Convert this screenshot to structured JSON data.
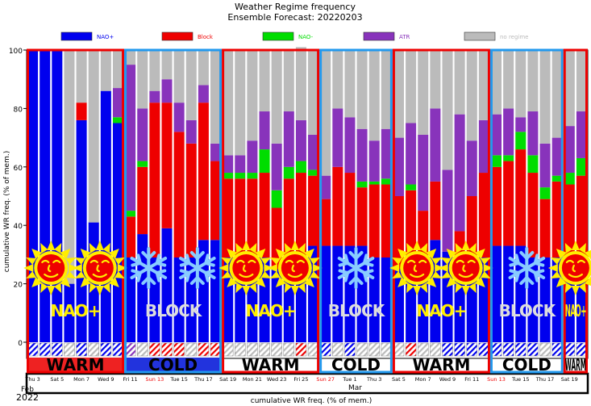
{
  "chart_data": {
    "type": "bar",
    "stacked": true,
    "title": "Weather Regime frequency",
    "subtitle": "Ensemble Forecast: 20220203",
    "xlabel": "cumulative WR freq. (% of mem.)",
    "ylabel": "cumulative WR freq. (% of mem.)",
    "ylim": [
      0,
      100
    ],
    "yticks": [
      "0",
      "20",
      "40",
      "60",
      "80",
      "100"
    ],
    "legend_position": "top",
    "series": [
      {
        "name": "NAO+",
        "color": "#0000ee",
        "values": [
          100,
          100,
          100,
          20,
          76,
          41,
          86,
          75,
          29,
          37,
          29,
          39,
          29,
          29,
          35,
          35,
          29,
          29,
          29,
          29,
          25,
          25,
          25,
          33,
          33,
          33,
          33,
          33,
          29,
          29,
          25,
          25,
          25,
          35,
          31,
          25,
          29,
          29,
          33,
          33,
          33,
          29,
          29,
          29,
          29,
          26
        ]
      },
      {
        "name": "Block",
        "color": "#ee0000",
        "values": [
          0,
          0,
          0,
          0,
          6,
          0,
          0,
          0,
          14,
          23,
          53,
          43,
          43,
          39,
          47,
          27,
          27,
          27,
          27,
          29,
          21,
          31,
          33,
          24,
          16,
          27,
          25,
          20,
          25,
          25,
          25,
          27,
          20,
          20,
          0,
          13,
          21,
          29,
          27,
          29,
          33,
          29,
          20,
          26,
          25,
          31
        ]
      },
      {
        "name": "NAO-",
        "color": "#00dd00",
        "values": [
          0,
          0,
          0,
          0,
          0,
          0,
          0,
          2,
          2,
          2,
          0,
          0,
          0,
          0,
          0,
          0,
          2,
          2,
          2,
          8,
          6,
          4,
          4,
          2,
          0,
          0,
          0,
          2,
          1,
          2,
          0,
          2,
          0,
          0,
          0,
          0,
          0,
          0,
          4,
          2,
          6,
          6,
          4,
          2,
          4,
          6
        ]
      },
      {
        "name": "ATR",
        "color": "#8833bb",
        "values": [
          0,
          0,
          0,
          0,
          0,
          0,
          0,
          10,
          50,
          18,
          4,
          8,
          10,
          8,
          6,
          6,
          6,
          6,
          11,
          13,
          16,
          19,
          14,
          12,
          8,
          20,
          19,
          18,
          14,
          17,
          20,
          21,
          26,
          25,
          28,
          40,
          19,
          18,
          14,
          16,
          5,
          15,
          15,
          13,
          16,
          16
        ]
      },
      {
        "name": "no regime",
        "color": "#bbbbbb",
        "values": [
          0,
          0,
          0,
          80,
          18,
          59,
          14,
          13,
          5,
          20,
          14,
          10,
          18,
          24,
          12,
          32,
          36,
          36,
          31,
          21,
          32,
          21,
          25,
          29,
          43,
          20,
          23,
          27,
          31,
          27,
          30,
          25,
          29,
          20,
          41,
          22,
          31,
          24,
          22,
          20,
          23,
          21,
          32,
          30,
          26,
          21
        ]
      }
    ],
    "date_ticks": [
      {
        "label": "Thu 3",
        "color": "#000000"
      },
      {
        "label": "Sat 5",
        "color": "#000000"
      },
      {
        "label": "Mon 7",
        "color": "#000000"
      },
      {
        "label": "Wed 9",
        "color": "#000000"
      },
      {
        "label": "Fri 11",
        "color": "#000000"
      },
      {
        "label": "Sun 13",
        "color": "#ee0000"
      },
      {
        "label": "Tue 15",
        "color": "#000000"
      },
      {
        "label": "Thu 17",
        "color": "#000000"
      },
      {
        "label": "Sat 19",
        "color": "#000000"
      },
      {
        "label": "Mon 21",
        "color": "#000000"
      },
      {
        "label": "Wed 23",
        "color": "#000000"
      },
      {
        "label": "Fri 25",
        "color": "#000000"
      },
      {
        "label": "Sun 27",
        "color": "#ee0000"
      },
      {
        "label": "Tue 1",
        "color": "#000000"
      },
      {
        "label": "Thu 3",
        "color": "#000000"
      },
      {
        "label": "Sat 5",
        "color": "#000000"
      },
      {
        "label": "Mon 7",
        "color": "#000000"
      },
      {
        "label": "Wed 9",
        "color": "#000000"
      },
      {
        "label": "Fri 11",
        "color": "#000000"
      },
      {
        "label": "Sun 13",
        "color": "#ee0000"
      },
      {
        "label": "Tue 15",
        "color": "#000000"
      },
      {
        "label": "Thu 17",
        "color": "#000000"
      },
      {
        "label": "Sat 19",
        "color": "#000000"
      }
    ],
    "month_labels": [
      "Feb",
      "Mar"
    ],
    "year_label": "2022",
    "dominant_regime_row": [
      "NAO+",
      "NAO+",
      "NAO+",
      "no regime",
      "NAO+",
      "no regime",
      "NAO+",
      "NAO+",
      "ATR",
      "no regime",
      "Block",
      "Block",
      "Block",
      "no regime",
      "Block",
      "Block",
      "no regime",
      "no regime",
      "no regime",
      "no regime",
      "no regime",
      "no regime",
      "Block",
      "no regime",
      "NAO+",
      "no regime",
      "NAO+",
      "no regime",
      "no regime",
      "no regime",
      "no regime",
      "Block",
      "no regime",
      "no regime",
      "NAO+",
      "NAO+",
      "NAO+",
      "NAO+",
      "NAO+",
      "NAO+",
      "NAO+",
      "NAO+",
      "no regime",
      "NAO+",
      "NAO+",
      "NAO+"
    ],
    "periods": [
      {
        "type": "WARM",
        "regime": "NAO+",
        "icon": "sun",
        "start": 0,
        "end": 8,
        "color": "#ee0000",
        "label_color": "#ffee00",
        "bottom_fill": "#ee2222"
      },
      {
        "type": "COLD",
        "regime": "BLOCK",
        "icon": "snowflake",
        "start": 8,
        "end": 16,
        "color": "#2299ee",
        "label_color": "#dddddd",
        "bottom_fill": "#2233dd"
      },
      {
        "type": "WARM",
        "regime": "NAO+",
        "icon": "sun",
        "start": 16,
        "end": 24,
        "color": "#ee0000",
        "label_color": "#ffee00",
        "bottom_fill": "#ffffff"
      },
      {
        "type": "COLD",
        "regime": "BLOCK",
        "icon": "snowflake",
        "start": 24,
        "end": 30,
        "color": "#2299ee",
        "label_color": "#dddddd",
        "bottom_fill": "#ffffff"
      },
      {
        "type": "WARM",
        "regime": "NAO+",
        "icon": "sun",
        "start": 30,
        "end": 38,
        "color": "#ee0000",
        "label_color": "#ffee00",
        "bottom_fill": "#ffffff"
      },
      {
        "type": "COLD",
        "regime": "BLOCK",
        "icon": "snowflake",
        "start": 38,
        "end": 44,
        "color": "#2299ee",
        "label_color": "#dddddd",
        "bottom_fill": "#ffffff"
      },
      {
        "type": "WARM",
        "regime": "NAO+",
        "icon": "sun",
        "start": 44,
        "end": 46,
        "color": "#ee0000",
        "label_color": "#ffee00",
        "bottom_fill": "#ffffff"
      }
    ]
  }
}
